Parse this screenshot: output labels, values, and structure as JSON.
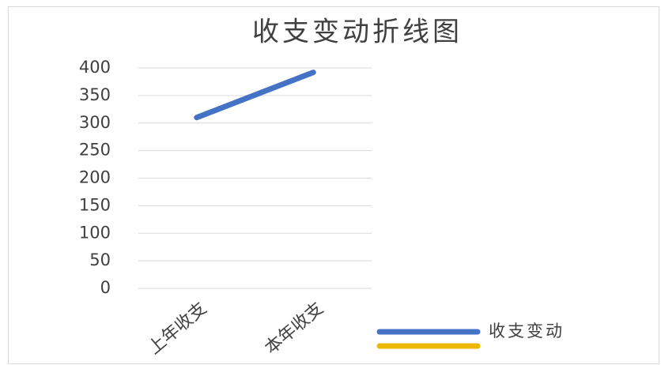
{
  "chart_data": {
    "type": "line",
    "title": "收支变动折线图",
    "categories": [
      "上年收支",
      "本年收支"
    ],
    "series": [
      {
        "name": "收支变动",
        "color": "#4472c4",
        "values": [
          310,
          392
        ]
      },
      {
        "color": "#ecb800",
        "values": [
          null,
          null
        ]
      }
    ],
    "ylim": [
      0,
      400
    ],
    "yticks": [
      0,
      50,
      100,
      150,
      200,
      250,
      300,
      350,
      400
    ],
    "grid": true
  }
}
